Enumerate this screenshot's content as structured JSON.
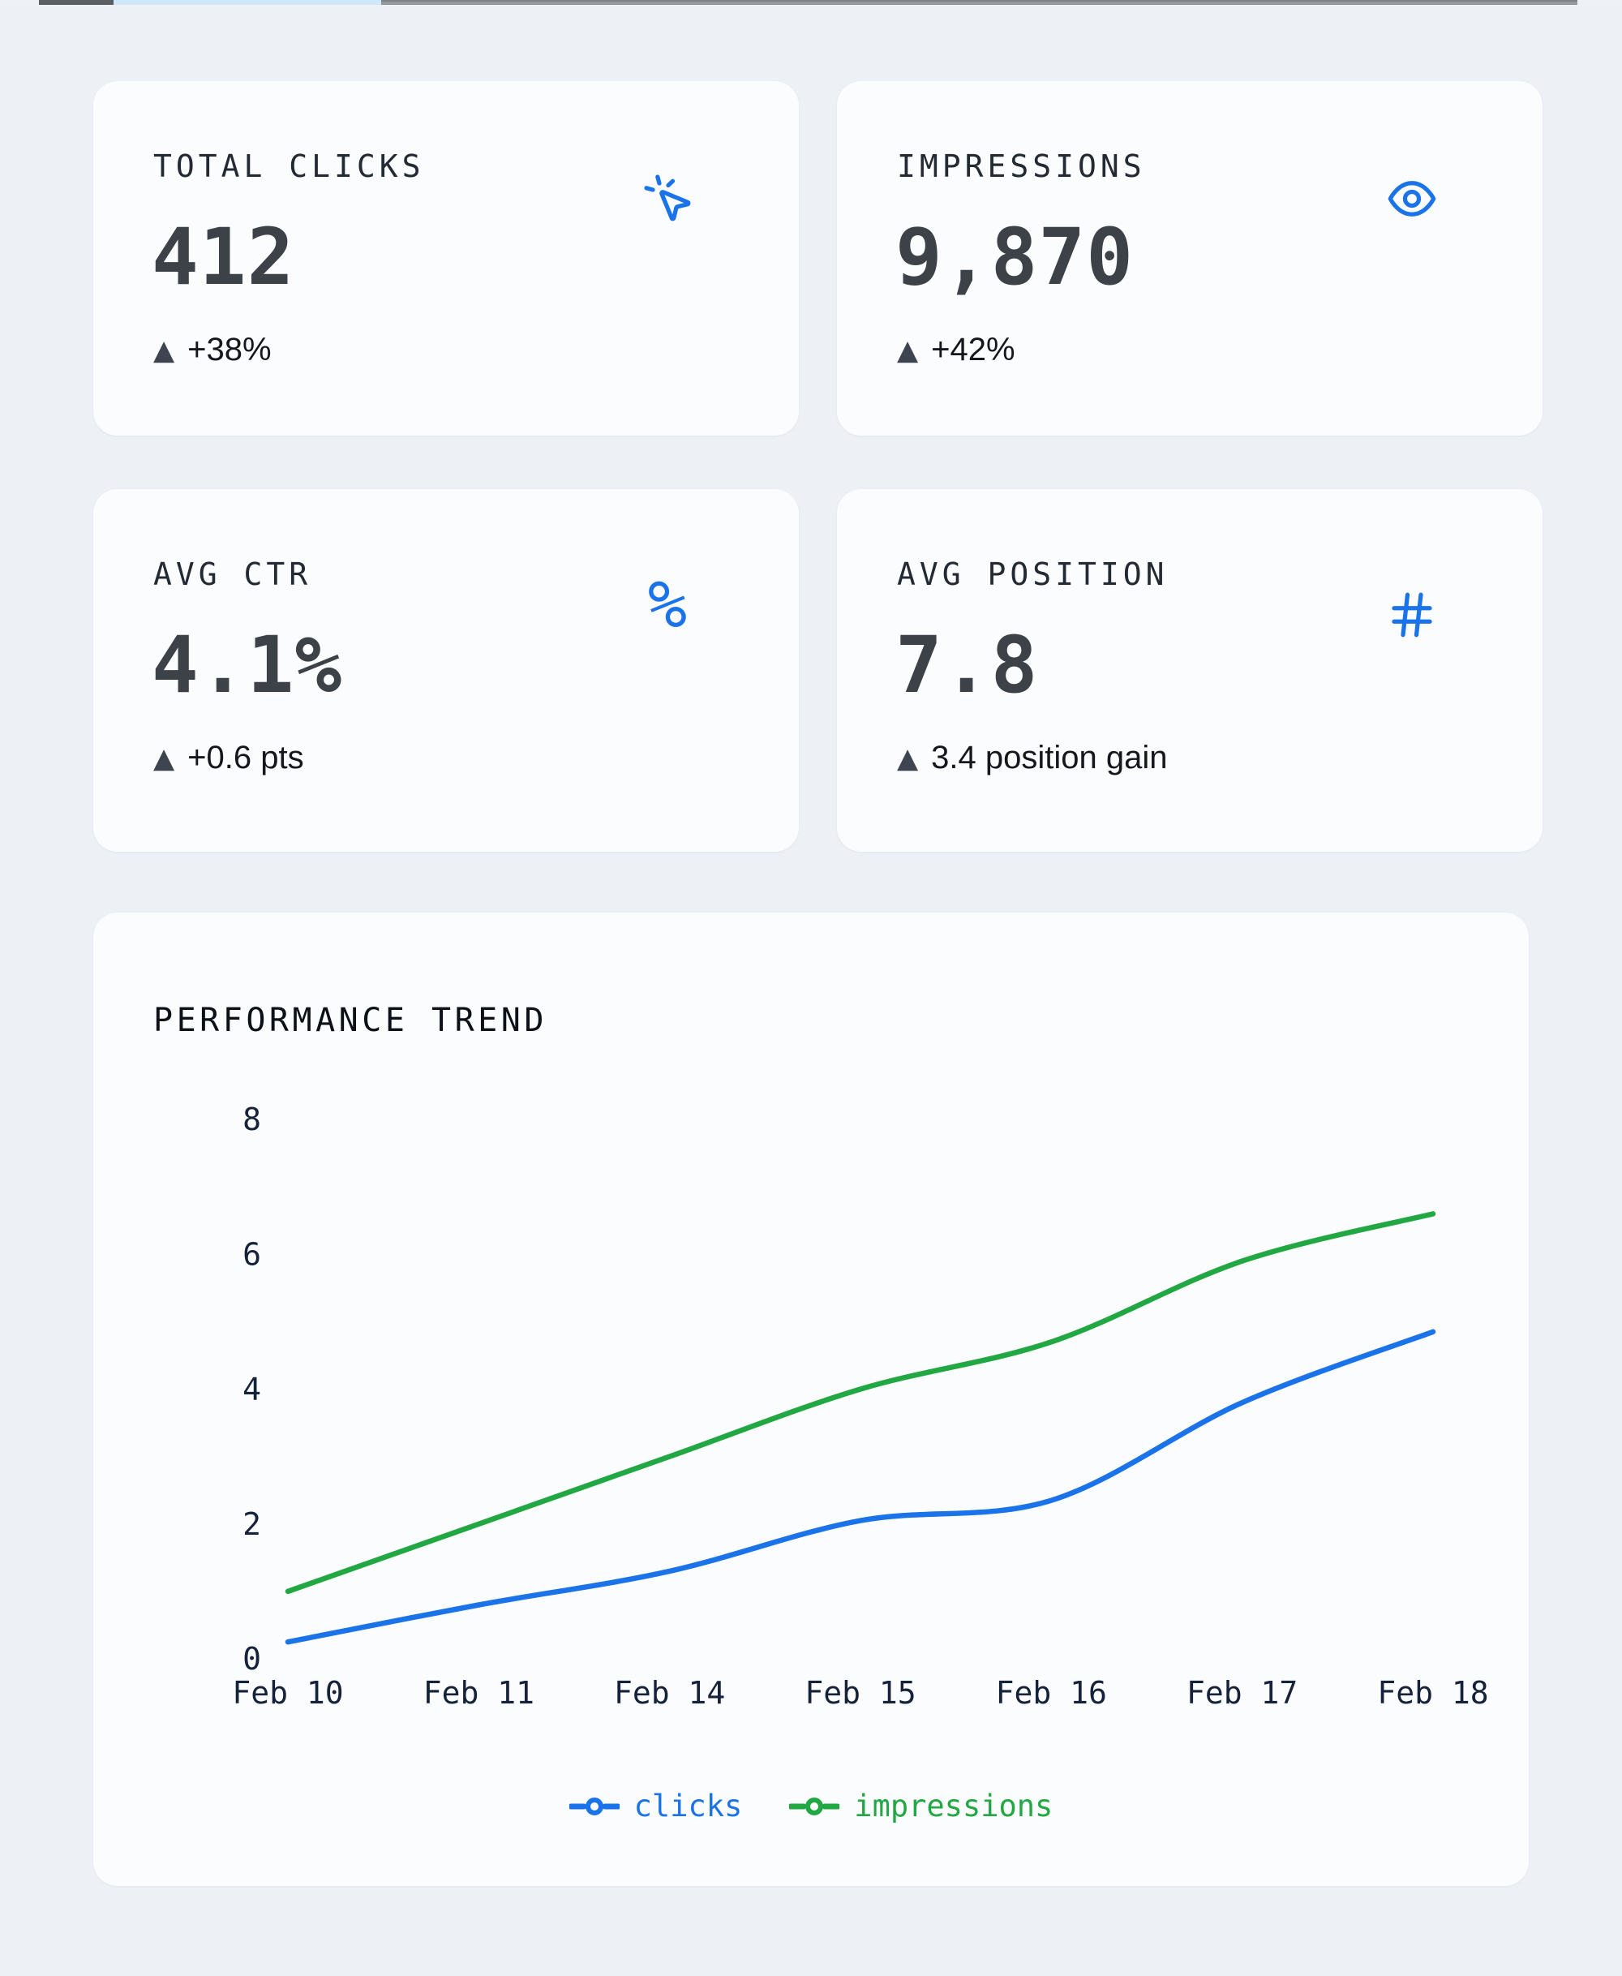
{
  "colors": {
    "accent_blue": "#1a73e8",
    "accent_green": "#22a843",
    "page_background": "#edf1f6",
    "card_background": "#fbfcfe",
    "axis_text": "#15223a"
  },
  "stat_cards": [
    {
      "label": "TOTAL CLICKS",
      "value": "412",
      "delta_marker": "▲",
      "delta": "+38%",
      "icon": "cursor-click-icon"
    },
    {
      "label": "IMPRESSIONS",
      "value": "9,870",
      "delta_marker": "▲",
      "delta": "+42%",
      "icon": "eye-icon"
    },
    {
      "label": "AVG CTR",
      "value": "4.1%",
      "delta_marker": "▲",
      "delta": "+0.6 pts",
      "icon": "percent-icon"
    },
    {
      "label": "AVG POSITION",
      "value": "7.8",
      "delta_marker": "▲",
      "delta": "3.4 position gain",
      "icon": "hash-icon"
    }
  ],
  "chart": {
    "title": "PERFORMANCE TREND"
  },
  "chart_data": {
    "type": "line",
    "title": "PERFORMANCE TREND",
    "categories": [
      "Feb 10",
      "Feb 11",
      "Feb 14",
      "Feb 15",
      "Feb 16",
      "Feb 17",
      "Feb 18"
    ],
    "series": [
      {
        "name": "clicks",
        "color": "#1a73e8",
        "values": [
          0.25,
          0.8,
          1.3,
          2.05,
          2.35,
          3.8,
          4.85
        ]
      },
      {
        "name": "impressions",
        "color": "#22a843",
        "values": [
          1.0,
          2.0,
          3.0,
          4.0,
          4.7,
          5.9,
          6.6
        ]
      }
    ],
    "xlabel": "",
    "ylabel": "",
    "ylim": [
      0,
      8
    ],
    "yticks": [
      0,
      2,
      4,
      6,
      8
    ],
    "grid": false,
    "legend_position": "bottom"
  },
  "legend": [
    {
      "label": "clicks",
      "color": "#1a73e8"
    },
    {
      "label": "impressions",
      "color": "#22a843"
    }
  ]
}
